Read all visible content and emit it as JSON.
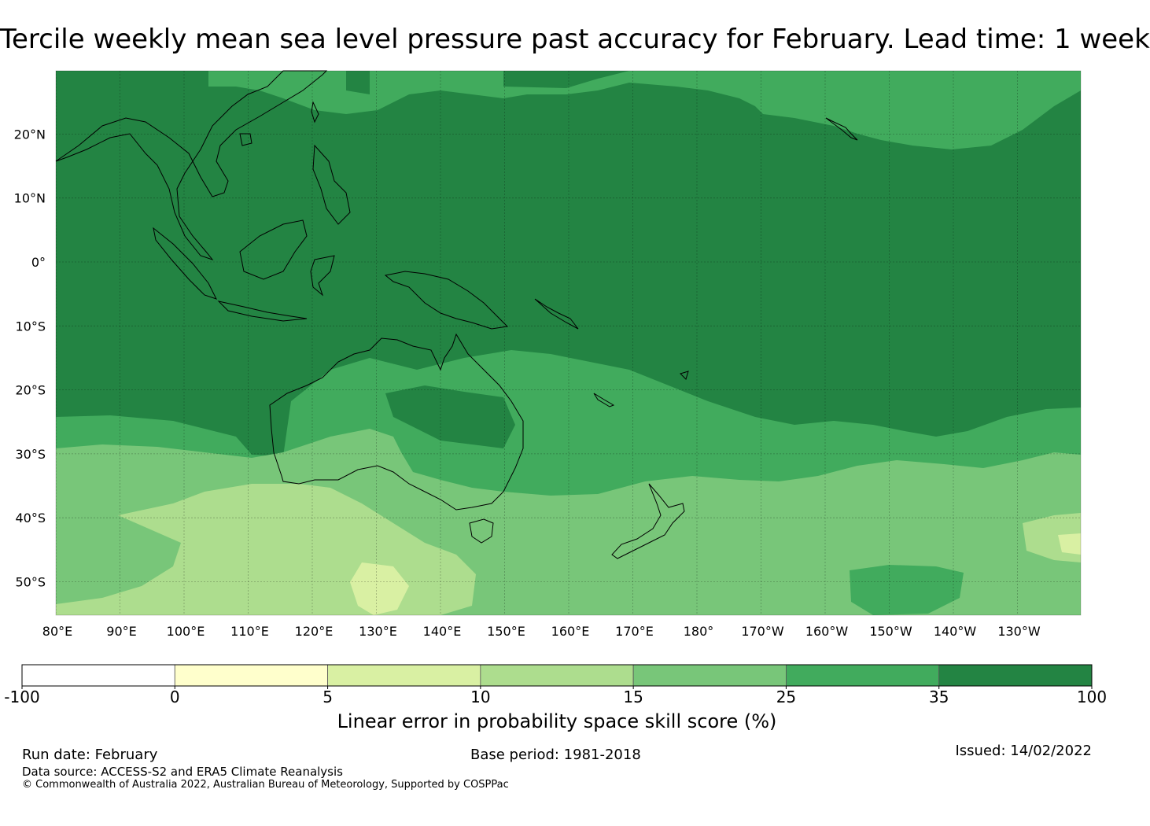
{
  "title": "Tercile weekly mean sea level pressure past accuracy for February. Lead time: 1 week",
  "map": {
    "lat_labels": [
      "20°N",
      "10°N",
      "0°",
      "10°S",
      "20°S",
      "30°S",
      "40°S",
      "50°S"
    ],
    "lon_labels": [
      "80°E",
      "90°E",
      "100°E",
      "110°E",
      "120°E",
      "130°E",
      "140°E",
      "150°E",
      "160°E",
      "170°E",
      "180°",
      "170°W",
      "160°W",
      "150°W",
      "140°W",
      "130°W"
    ],
    "regions": [
      {
        "name": "Tropical Indian and Pacific Ocean",
        "category": "35 to 100"
      },
      {
        "name": "North Pacific subtropics",
        "category": "25 to 35"
      },
      {
        "name": "Central Australia",
        "category": "25 to 35"
      },
      {
        "name": "Southern Australia and Tasman Sea",
        "category": "15 to 25"
      },
      {
        "name": "Southern Ocean south of Western Australia",
        "category": "10 to 15"
      }
    ],
    "landmasses": [
      "Australia",
      "New Guinea",
      "Borneo",
      "Sumatra",
      "New Zealand",
      "Tasmania",
      "Philippines"
    ]
  },
  "colorbar": {
    "label": "Linear error in probability space skill score (%)",
    "ticks": [
      "-100",
      "0",
      "5",
      "10",
      "15",
      "25",
      "35",
      "100"
    ],
    "colors": [
      "#ffffff",
      "#ffffcc",
      "#d9f0a3",
      "#addd8e",
      "#78c679",
      "#41ab5d",
      "#238443"
    ]
  },
  "footer": {
    "run_date": "Run date: February",
    "base_period": "Base period: 1981-2018",
    "issued": "Issued: 14/02/2022",
    "source": "Data source: ACCESS-S2 and ERA5 Climate Reanalysis",
    "copyright": "© Commonwealth of Australia 2022, Australian Bureau of Meteorology, Supported by COSPPac"
  }
}
